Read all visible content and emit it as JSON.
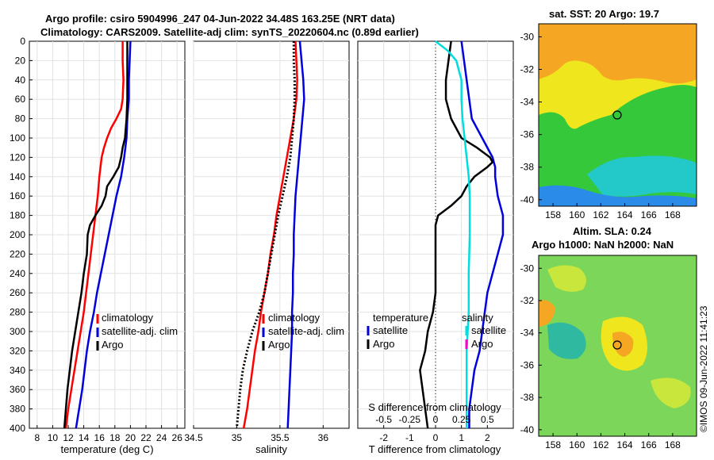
{
  "header": {
    "title1": "Argo profile: csiro 5904996_247 04-Jun-2022 34.48S 163.25E (NRT data)",
    "title2": "Climatology: CARS2009. Satellite-adj clim: synTS_20220604.nc (0.89d earlier)"
  },
  "map_sst": {
    "title": "sat. SST: 20 Argo: 19.7",
    "lat_ticks": [
      "-30",
      "-32",
      "-34",
      "-36",
      "-38",
      "-40"
    ],
    "lon_ticks": [
      "158",
      "160",
      "162",
      "164",
      "166",
      "168"
    ],
    "colors": {
      "orange": "#f5a623",
      "yellow": "#f0e61e",
      "green": "#34c83a",
      "cyan": "#23c8c8",
      "blue": "#2a8ce8"
    }
  },
  "map_sla": {
    "title1": "Altim. SLA: 0.24",
    "title2": "Argo h1000: NaN h2000: NaN",
    "lat_ticks": [
      "-30",
      "-32",
      "-34",
      "-36",
      "-38",
      "-40"
    ],
    "lon_ticks": [
      "158",
      "160",
      "162",
      "164",
      "166",
      "168"
    ]
  },
  "stamp": "©IMOS 09-Jun-2022 11:41:23",
  "chart_data": [
    {
      "type": "line",
      "xlabel": "temperature (deg C)",
      "ylabel": "",
      "xlim": [
        7,
        27
      ],
      "ylim": [
        400,
        0
      ],
      "xticks": [
        "8",
        "10",
        "12",
        "14",
        "16",
        "18",
        "20",
        "22",
        "24",
        "26"
      ],
      "yticks": [
        "0",
        "20",
        "40",
        "60",
        "80",
        "100",
        "120",
        "140",
        "160",
        "180",
        "200",
        "220",
        "240",
        "260",
        "280",
        "300",
        "320",
        "340",
        "360",
        "380",
        "400"
      ],
      "legend": [
        "climatology",
        "satellite-adj. clim",
        "Argo"
      ],
      "series": [
        {
          "name": "climatology",
          "color": "#ff0000",
          "depth": [
            0,
            20,
            40,
            60,
            70,
            80,
            90,
            100,
            110,
            120,
            140,
            160,
            180,
            200,
            220,
            240,
            260,
            280,
            300,
            320,
            340,
            360,
            380,
            400
          ],
          "values": [
            19.0,
            19.0,
            19.1,
            19.0,
            18.8,
            18.2,
            17.5,
            17.0,
            16.6,
            16.3,
            16.0,
            15.8,
            15.5,
            15.2,
            14.9,
            14.6,
            14.3,
            14.0,
            13.6,
            13.2,
            12.8,
            12.4,
            12.0,
            11.7
          ]
        },
        {
          "name": "satellite-adj. clim",
          "color": "#0000dd",
          "depth": [
            0,
            20,
            40,
            60,
            80,
            100,
            120,
            140,
            160,
            180,
            200,
            220,
            240,
            260,
            280,
            300,
            320,
            340,
            360,
            380,
            400
          ],
          "values": [
            20.0,
            19.9,
            19.8,
            19.8,
            19.6,
            19.5,
            19.2,
            18.8,
            18.2,
            17.7,
            17.2,
            16.7,
            16.2,
            15.7,
            15.3,
            14.8,
            14.4,
            14.1,
            13.8,
            13.4,
            13.0
          ]
        },
        {
          "name": "Argo",
          "color": "#000000",
          "depth": [
            0,
            20,
            40,
            60,
            80,
            100,
            110,
            120,
            130,
            140,
            150,
            160,
            170,
            180,
            190,
            200,
            220,
            240,
            260,
            280,
            300,
            320,
            340,
            360,
            380,
            400
          ],
          "values": [
            19.6,
            19.6,
            19.6,
            19.6,
            19.5,
            19.3,
            19.0,
            18.8,
            18.5,
            17.8,
            17.0,
            16.8,
            16.3,
            15.5,
            14.8,
            14.5,
            14.4,
            14.0,
            13.7,
            13.3,
            12.9,
            12.5,
            12.2,
            11.9,
            11.7,
            11.5
          ]
        }
      ]
    },
    {
      "type": "line",
      "xlabel": "salinity",
      "ylabel": "",
      "xlim": [
        34.5,
        36.3
      ],
      "ylim": [
        400,
        0
      ],
      "xticks": [
        "34.5",
        "35",
        "35.5",
        "36"
      ],
      "legend": [
        "climatology",
        "satellite-adj. clim",
        "Argo"
      ],
      "series": [
        {
          "name": "climatology",
          "color": "#ff0000",
          "depth": [
            0,
            20,
            40,
            60,
            80,
            100,
            120,
            140,
            160,
            180,
            200,
            220,
            240,
            260,
            280,
            300,
            320,
            340,
            360,
            380,
            400
          ],
          "values": [
            35.68,
            35.69,
            35.7,
            35.69,
            35.66,
            35.62,
            35.58,
            35.54,
            35.5,
            35.46,
            35.43,
            35.39,
            35.36,
            35.32,
            35.28,
            35.25,
            35.21,
            35.18,
            35.15,
            35.12,
            35.08
          ]
        },
        {
          "name": "satellite-adj. clim",
          "color": "#0000dd",
          "depth": [
            0,
            20,
            40,
            60,
            80,
            100,
            120,
            140,
            160,
            180,
            200,
            220,
            240,
            260,
            280,
            300,
            320,
            340,
            360,
            380,
            400
          ],
          "values": [
            35.73,
            35.75,
            35.77,
            35.78,
            35.76,
            35.74,
            35.72,
            35.7,
            35.68,
            35.67,
            35.66,
            35.66,
            35.65,
            35.65,
            35.64,
            35.64,
            35.63,
            35.62,
            35.61,
            35.6,
            35.59
          ]
        },
        {
          "name": "Argo",
          "color": "#000000",
          "depth": [
            0,
            20,
            40,
            60,
            80,
            100,
            120,
            140,
            160,
            180,
            200,
            220,
            240,
            260,
            280,
            300,
            320,
            340,
            360,
            380,
            400
          ],
          "values": [
            35.66,
            35.66,
            35.67,
            35.67,
            35.66,
            35.64,
            35.62,
            35.58,
            35.53,
            35.48,
            35.44,
            35.4,
            35.36,
            35.32,
            35.26,
            35.18,
            35.12,
            35.07,
            35.04,
            35.02,
            35.0
          ]
        }
      ]
    },
    {
      "type": "line",
      "xlabel": "T difference from climatology",
      "title": "S difference from climatology",
      "xlim": [
        -3.0,
        3.0
      ],
      "ylim": [
        400,
        0
      ],
      "xticks": [
        "-2",
        "-1",
        "0",
        "1",
        "2"
      ],
      "top_ticks": [
        "-0.5",
        "-0.25",
        "0",
        "0.25",
        "0.5"
      ],
      "legend": {
        "temperature_header": "temperature",
        "salinity_header": "salinity",
        "entries": [
          "satellite",
          "Argo",
          "satellite",
          "Argo"
        ]
      },
      "series": [
        {
          "name": "temperature satellite",
          "color": "#0000dd",
          "depth": [
            0,
            20,
            40,
            60,
            80,
            100,
            120,
            130,
            140,
            160,
            180,
            200,
            220,
            240,
            260,
            280,
            300,
            320,
            340,
            360,
            380,
            400
          ],
          "values": [
            1.0,
            1.1,
            1.2,
            1.3,
            1.4,
            1.8,
            2.2,
            2.3,
            2.3,
            2.4,
            2.6,
            2.6,
            2.4,
            2.2,
            2.0,
            1.9,
            1.8,
            1.7,
            1.5,
            1.4,
            1.3,
            1.3
          ]
        },
        {
          "name": "temperature Argo",
          "color": "#000000",
          "depth": [
            0,
            20,
            40,
            60,
            80,
            100,
            110,
            120,
            125,
            130,
            140,
            150,
            160,
            170,
            180,
            190,
            200,
            220,
            240,
            260,
            280,
            300,
            320,
            340,
            360,
            380,
            400
          ],
          "values": [
            0.6,
            0.5,
            0.4,
            0.4,
            0.6,
            1.0,
            1.6,
            2.1,
            2.2,
            2.0,
            1.5,
            1.2,
            1.0,
            0.6,
            0.1,
            0.0,
            0.0,
            0.0,
            0.0,
            0.0,
            -0.1,
            -0.3,
            -0.4,
            -0.6,
            -0.5,
            -0.4,
            -0.3
          ]
        },
        {
          "name": "salinity satellite",
          "color": "#00dddd",
          "depth": [
            0,
            10,
            20,
            40,
            60,
            80,
            100,
            120,
            140,
            160,
            180,
            200,
            240,
            280,
            320,
            360,
            400
          ],
          "values": [
            0.0,
            0.12,
            0.2,
            0.25,
            0.25,
            0.26,
            0.28,
            0.3,
            0.32,
            0.33,
            0.33,
            0.33,
            0.32,
            0.32,
            0.3,
            0.3,
            0.3
          ]
        }
      ]
    }
  ]
}
